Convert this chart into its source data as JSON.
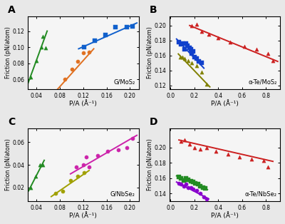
{
  "panel_A": {
    "title": "G/MoS₂",
    "xlabel": "P/A (Å⁻¹)",
    "ylabel": "Friction (pN/atom)",
    "xlim": [
      0.025,
      0.215
    ],
    "ylim": [
      0.048,
      0.138
    ],
    "xticks": [
      0.04,
      0.08,
      0.12,
      0.16,
      0.2
    ],
    "yticks": [
      0.06,
      0.08,
      0.1,
      0.12
    ],
    "series": [
      {
        "x": [
          0.03,
          0.04,
          0.048,
          0.05,
          0.055
        ],
        "y": [
          0.063,
          0.083,
          0.1,
          0.113,
          0.099
        ],
        "color": "#228B22",
        "marker": "^",
        "fit_x": [
          0.025,
          0.058
        ],
        "fit_y": [
          0.055,
          0.12
        ]
      },
      {
        "x": [
          0.088,
          0.1,
          0.11,
          0.12,
          0.13
        ],
        "y": [
          0.06,
          0.073,
          0.082,
          0.093,
          0.094
        ],
        "color": "#E07020",
        "marker": "o",
        "fit_x": [
          0.076,
          0.138
        ],
        "fit_y": [
          0.048,
          0.098
        ]
      },
      {
        "x": [
          0.122,
          0.14,
          0.158,
          0.175,
          0.195,
          0.205
        ],
        "y": [
          0.1,
          0.108,
          0.115,
          0.125,
          0.125,
          0.126
        ],
        "color": "#1060CC",
        "marker": "s",
        "fit_x": [
          0.112,
          0.212
        ],
        "fit_y": [
          0.098,
          0.13
        ]
      }
    ]
  },
  "panel_B": {
    "title": "α-Te/MoS₂",
    "xlabel": "P/A (Å⁻¹)",
    "ylabel": "Friction (pN/atom)",
    "xlim": [
      -0.01,
      0.92
    ],
    "ylim": [
      0.115,
      0.212
    ],
    "xticks": [
      0.0,
      0.2,
      0.4,
      0.6,
      0.8
    ],
    "yticks": [
      0.12,
      0.14,
      0.16,
      0.18,
      0.2
    ],
    "series": [
      {
        "x": [
          0.07,
          0.09,
          0.1,
          0.12,
          0.13,
          0.14,
          0.16,
          0.17,
          0.18,
          0.19,
          0.2,
          0.22,
          0.24,
          0.26
        ],
        "y": [
          0.178,
          0.175,
          0.176,
          0.168,
          0.176,
          0.173,
          0.17,
          0.168,
          0.163,
          0.165,
          0.158,
          0.156,
          0.152,
          0.15
        ],
        "color": "#1040CC",
        "marker": "s",
        "fit_x": [
          0.05,
          0.28
        ],
        "fit_y": [
          0.182,
          0.143
        ]
      },
      {
        "x": [
          0.08,
          0.1,
          0.12,
          0.15,
          0.18,
          0.22,
          0.26,
          0.3
        ],
        "y": [
          0.158,
          0.158,
          0.156,
          0.153,
          0.15,
          0.146,
          0.138,
          0.122
        ],
        "color": "#808000",
        "marker": "^",
        "fit_x": [
          0.065,
          0.33
        ],
        "fit_y": [
          0.162,
          0.118
        ]
      },
      {
        "x": [
          0.18,
          0.22,
          0.26,
          0.32,
          0.4,
          0.5,
          0.62,
          0.72,
          0.82,
          0.86
        ],
        "y": [
          0.2,
          0.202,
          0.192,
          0.188,
          0.184,
          0.178,
          0.172,
          0.168,
          0.163,
          0.153
        ],
        "color": "#CC2020",
        "marker": "^",
        "fit_x": [
          0.16,
          0.9
        ],
        "fit_y": [
          0.2,
          0.152
        ]
      }
    ]
  },
  "panel_C": {
    "title": "G/NbSe₂",
    "xlabel": "P/A (Å⁻¹)",
    "ylabel": "Friction (pN/atom)",
    "xlim": [
      0.025,
      0.215
    ],
    "ylim": [
      0.008,
      0.072
    ],
    "xticks": [
      0.04,
      0.08,
      0.12,
      0.16,
      0.2
    ],
    "yticks": [
      0.02,
      0.04,
      0.06
    ],
    "series": [
      {
        "x": [
          0.03,
          0.038,
          0.045,
          0.05
        ],
        "y": [
          0.02,
          0.03,
          0.04,
          0.04
        ],
        "color": "#228B22",
        "marker": "^",
        "fit_x": [
          0.026,
          0.053
        ],
        "fit_y": [
          0.017,
          0.044
        ]
      },
      {
        "x": [
          0.072,
          0.085,
          0.098,
          0.11,
          0.122
        ],
        "y": [
          0.015,
          0.017,
          0.026,
          0.03,
          0.033
        ],
        "color": "#A0A000",
        "marker": "o",
        "fit_x": [
          0.065,
          0.13
        ],
        "fit_y": [
          0.012,
          0.035
        ]
      },
      {
        "x": [
          0.108,
          0.12,
          0.125,
          0.13,
          0.145,
          0.162,
          0.18,
          0.195,
          0.205
        ],
        "y": [
          0.038,
          0.04,
          0.047,
          0.038,
          0.048,
          0.052,
          0.053,
          0.055,
          0.063
        ],
        "color": "#CC22AA",
        "marker": "o",
        "fit_x": [
          0.098,
          0.212
        ],
        "fit_y": [
          0.032,
          0.066
        ]
      }
    ]
  },
  "panel_D": {
    "title": "α-Te/NbSe₂",
    "xlabel": "P/A (Å⁻¹)",
    "ylabel": "Friction (pN/atom)",
    "xlim": [
      -0.01,
      0.92
    ],
    "ylim": [
      0.13,
      0.225
    ],
    "xticks": [
      0.0,
      0.2,
      0.4,
      0.6,
      0.8
    ],
    "yticks": [
      0.14,
      0.16,
      0.18,
      0.2
    ],
    "series": [
      {
        "x": [
          0.07,
          0.09,
          0.11,
          0.13,
          0.15,
          0.17,
          0.19,
          0.21,
          0.23,
          0.25,
          0.27,
          0.29
        ],
        "y": [
          0.162,
          0.16,
          0.157,
          0.16,
          0.158,
          0.156,
          0.155,
          0.153,
          0.152,
          0.15,
          0.148,
          0.147
        ],
        "color": "#228B22",
        "marker": "s",
        "fit_x": [
          0.05,
          0.31
        ],
        "fit_y": [
          0.163,
          0.145
        ]
      },
      {
        "x": [
          0.07,
          0.09,
          0.11,
          0.13,
          0.15,
          0.17,
          0.19,
          0.22,
          0.25,
          0.28,
          0.3
        ],
        "y": [
          0.153,
          0.152,
          0.15,
          0.152,
          0.148,
          0.148,
          0.146,
          0.144,
          0.14,
          0.136,
          0.133
        ],
        "color": "#8800CC",
        "marker": "o",
        "fit_x": [
          0.05,
          0.32
        ],
        "fit_y": [
          0.155,
          0.133
        ]
      },
      {
        "x": [
          0.09,
          0.12,
          0.16,
          0.2,
          0.25,
          0.3,
          0.38,
          0.48,
          0.58,
          0.68,
          0.78,
          0.82
        ],
        "y": [
          0.208,
          0.21,
          0.205,
          0.2,
          0.198,
          0.2,
          0.195,
          0.192,
          0.188,
          0.185,
          0.183,
          0.175
        ],
        "color": "#CC2020",
        "marker": "^",
        "fit_x": [
          0.07,
          0.86
        ],
        "fit_y": [
          0.21,
          0.182
        ]
      }
    ]
  }
}
